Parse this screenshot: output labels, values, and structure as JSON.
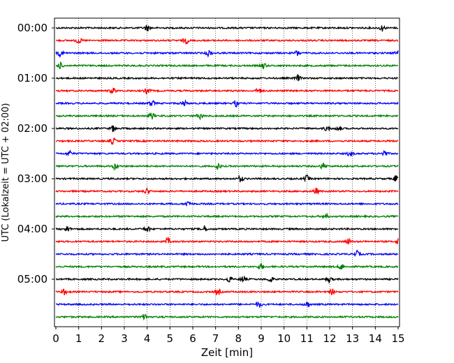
{
  "chart_data": {
    "type": "line",
    "title": "",
    "xlabel": "Zeit  [min]",
    "ylabel": "UTC (Lokalzeit = UTC + 02:00)",
    "xlim": [
      0,
      15
    ],
    "x_ticks": [
      "0",
      "1",
      "2",
      "3",
      "4",
      "5",
      "6",
      "7",
      "8",
      "9",
      "10",
      "11",
      "12",
      "13",
      "14",
      "15"
    ],
    "y_ticks": [
      "00:00",
      "01:00",
      "02:00",
      "03:00",
      "04:00",
      "05:00"
    ],
    "grid": "vertical dotted at each minute",
    "trace_interval": "15 min per line",
    "colors": [
      "#000000",
      "#ff0000",
      "#0000ff",
      "#008000"
    ],
    "traces": [
      {
        "start": "00:00",
        "color": "#000000",
        "events": [
          4.0,
          14.3
        ]
      },
      {
        "start": "00:15",
        "color": "#ff0000",
        "events": [
          1.0,
          5.7
        ]
      },
      {
        "start": "00:30",
        "color": "#0000ff",
        "events": [
          0.2,
          6.7,
          10.6,
          15.0
        ]
      },
      {
        "start": "00:45",
        "color": "#008000",
        "events": [
          0.2,
          9.1
        ]
      },
      {
        "start": "01:00",
        "color": "#000000",
        "events": [
          10.6
        ]
      },
      {
        "start": "01:15",
        "color": "#ff0000",
        "events": [
          2.5,
          4.0,
          8.9
        ]
      },
      {
        "start": "01:30",
        "color": "#0000ff",
        "events": [
          4.2,
          5.6,
          7.9
        ]
      },
      {
        "start": "01:45",
        "color": "#008000",
        "events": [
          4.2,
          6.3
        ]
      },
      {
        "start": "02:00",
        "color": "#000000",
        "events": [
          2.5,
          11.9,
          12.4
        ]
      },
      {
        "start": "02:15",
        "color": "#ff0000",
        "events": [
          2.5
        ]
      },
      {
        "start": "02:30",
        "color": "#0000ff",
        "events": [
          0.6,
          12.9,
          14.4
        ]
      },
      {
        "start": "02:45",
        "color": "#008000",
        "events": [
          2.6,
          7.1,
          11.7
        ]
      },
      {
        "start": "03:00",
        "color": "#000000",
        "events": [
          8.1,
          11.0,
          14.9
        ]
      },
      {
        "start": "03:15",
        "color": "#ff0000",
        "events": [
          4.0,
          11.4
        ]
      },
      {
        "start": "03:30",
        "color": "#0000ff",
        "events": [
          5.8
        ]
      },
      {
        "start": "03:45",
        "color": "#008000",
        "events": [
          11.8
        ]
      },
      {
        "start": "04:00",
        "color": "#000000",
        "events": [
          0.5,
          4.0,
          6.5
        ]
      },
      {
        "start": "04:15",
        "color": "#ff0000",
        "events": [
          4.9,
          12.8,
          15.0
        ]
      },
      {
        "start": "04:30",
        "color": "#0000ff",
        "events": [
          13.2
        ]
      },
      {
        "start": "04:45",
        "color": "#008000",
        "events": [
          9.0,
          12.5
        ]
      },
      {
        "start": "05:00",
        "color": "#000000",
        "events": [
          7.6,
          8.2,
          9.4,
          12.0
        ]
      },
      {
        "start": "05:15",
        "color": "#ff0000",
        "events": [
          0.4,
          7.1,
          12.1
        ]
      },
      {
        "start": "05:30",
        "color": "#0000ff",
        "events": [
          8.9,
          11.0
        ]
      },
      {
        "start": "05:45",
        "color": "#008000",
        "events": [
          3.9
        ]
      }
    ]
  }
}
